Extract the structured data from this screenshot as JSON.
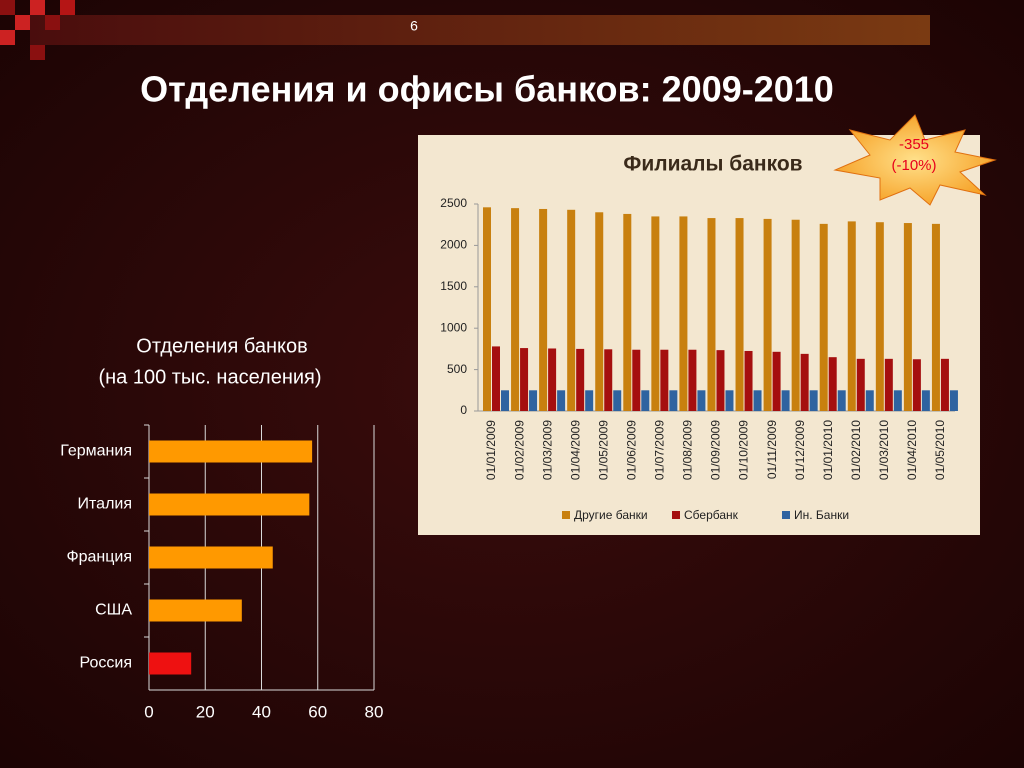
{
  "slide": {
    "number": "6",
    "title": "Отделения и офисы банков: 2009-2010"
  },
  "chart_data": [
    {
      "type": "hbar",
      "title": [
        "Отделения банков",
        "(на 100 тыс. населения)"
      ],
      "categories": [
        "Германия",
        "Италия",
        "Франция",
        "США",
        "Россия"
      ],
      "values": [
        58,
        57,
        44,
        33,
        15
      ],
      "colors": [
        "#ff9900",
        "#ff9900",
        "#ff9900",
        "#ff9900",
        "#ee1111"
      ],
      "xlim": [
        0,
        80
      ],
      "xticks": [
        0,
        20,
        40,
        60,
        80
      ],
      "grid": true
    },
    {
      "type": "grouped-bar",
      "title": "Филиалы банков",
      "categories": [
        "01/01/2009",
        "01/02/2009",
        "01/03/2009",
        "01/04/2009",
        "01/05/2009",
        "01/06/2009",
        "01/07/2009",
        "01/08/2009",
        "01/09/2009",
        "01/10/2009",
        "01/11/2009",
        "01/12/2009",
        "01/01/2010",
        "01/02/2010",
        "01/03/2010",
        "01/04/2010",
        "01/05/2010"
      ],
      "series": [
        {
          "name": "Другие банки",
          "color": "#c8800f",
          "values": [
            2460,
            2450,
            2440,
            2430,
            2400,
            2380,
            2350,
            2350,
            2330,
            2330,
            2320,
            2310,
            2260,
            2290,
            2280,
            2270,
            2260
          ]
        },
        {
          "name": "Сбербанк",
          "color": "#a50f0f",
          "values": [
            780,
            760,
            755,
            750,
            745,
            740,
            740,
            740,
            735,
            725,
            715,
            690,
            650,
            630,
            630,
            625,
            630
          ]
        },
        {
          "name": "Ин. Банки",
          "color": "#2f63a0",
          "values": [
            250,
            250,
            250,
            250,
            250,
            250,
            250,
            250,
            250,
            250,
            250,
            250,
            250,
            250,
            250,
            250,
            250
          ]
        }
      ],
      "ylim": [
        0,
        2500
      ],
      "yticks": [
        0,
        500,
        1000,
        1500,
        2000,
        2500
      ],
      "legend": "bottom",
      "annotation": [
        "-355",
        "(-10%)"
      ]
    }
  ]
}
